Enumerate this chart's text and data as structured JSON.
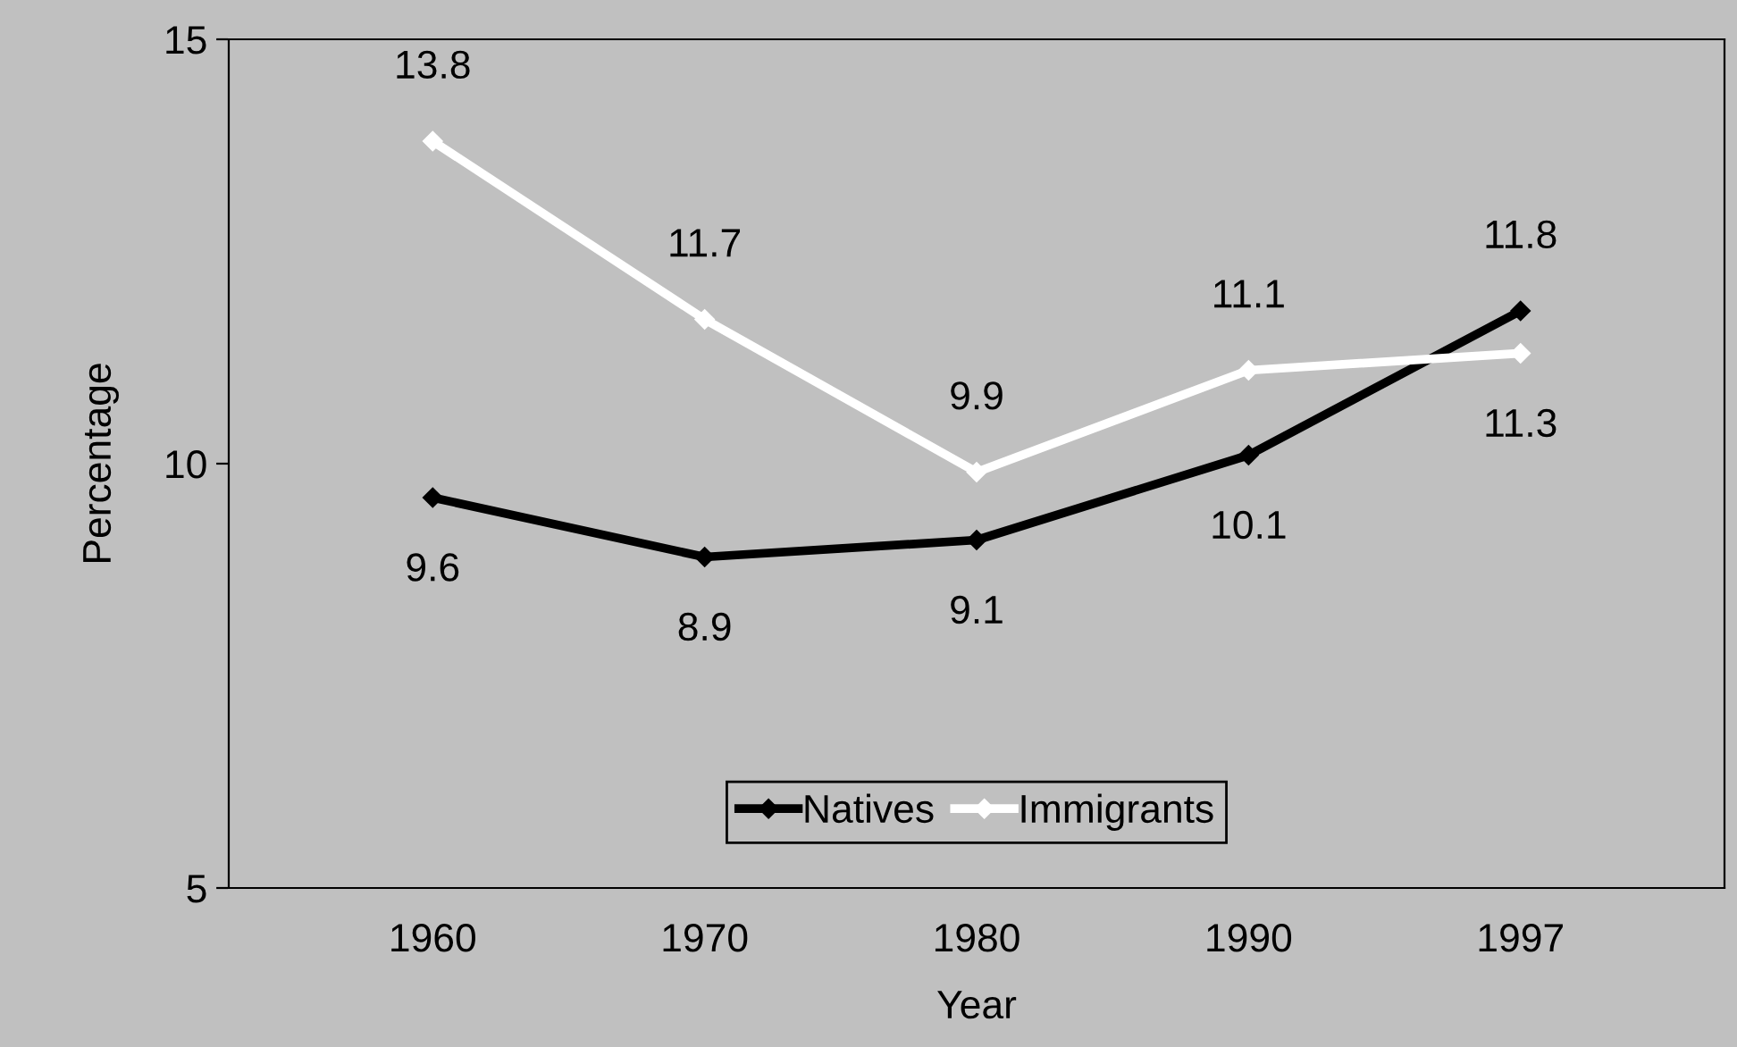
{
  "chart_data": {
    "type": "line",
    "xlabel": "Year",
    "ylabel": "Percentage",
    "categories": [
      "1960",
      "1970",
      "1980",
      "1990",
      "1997"
    ],
    "series": [
      {
        "name": "Natives",
        "color": "#000000",
        "values": [
          9.6,
          8.9,
          9.1,
          10.1,
          11.8
        ]
      },
      {
        "name": "Immigrants",
        "color": "#ffffff",
        "values": [
          13.8,
          11.7,
          9.9,
          11.1,
          11.3
        ]
      }
    ],
    "ylim": [
      5,
      15
    ],
    "yticks": [
      5,
      10,
      15
    ],
    "grid": false,
    "legend": "bottom",
    "marker": "diamond",
    "line_style": "solid",
    "data_labels": true
  }
}
